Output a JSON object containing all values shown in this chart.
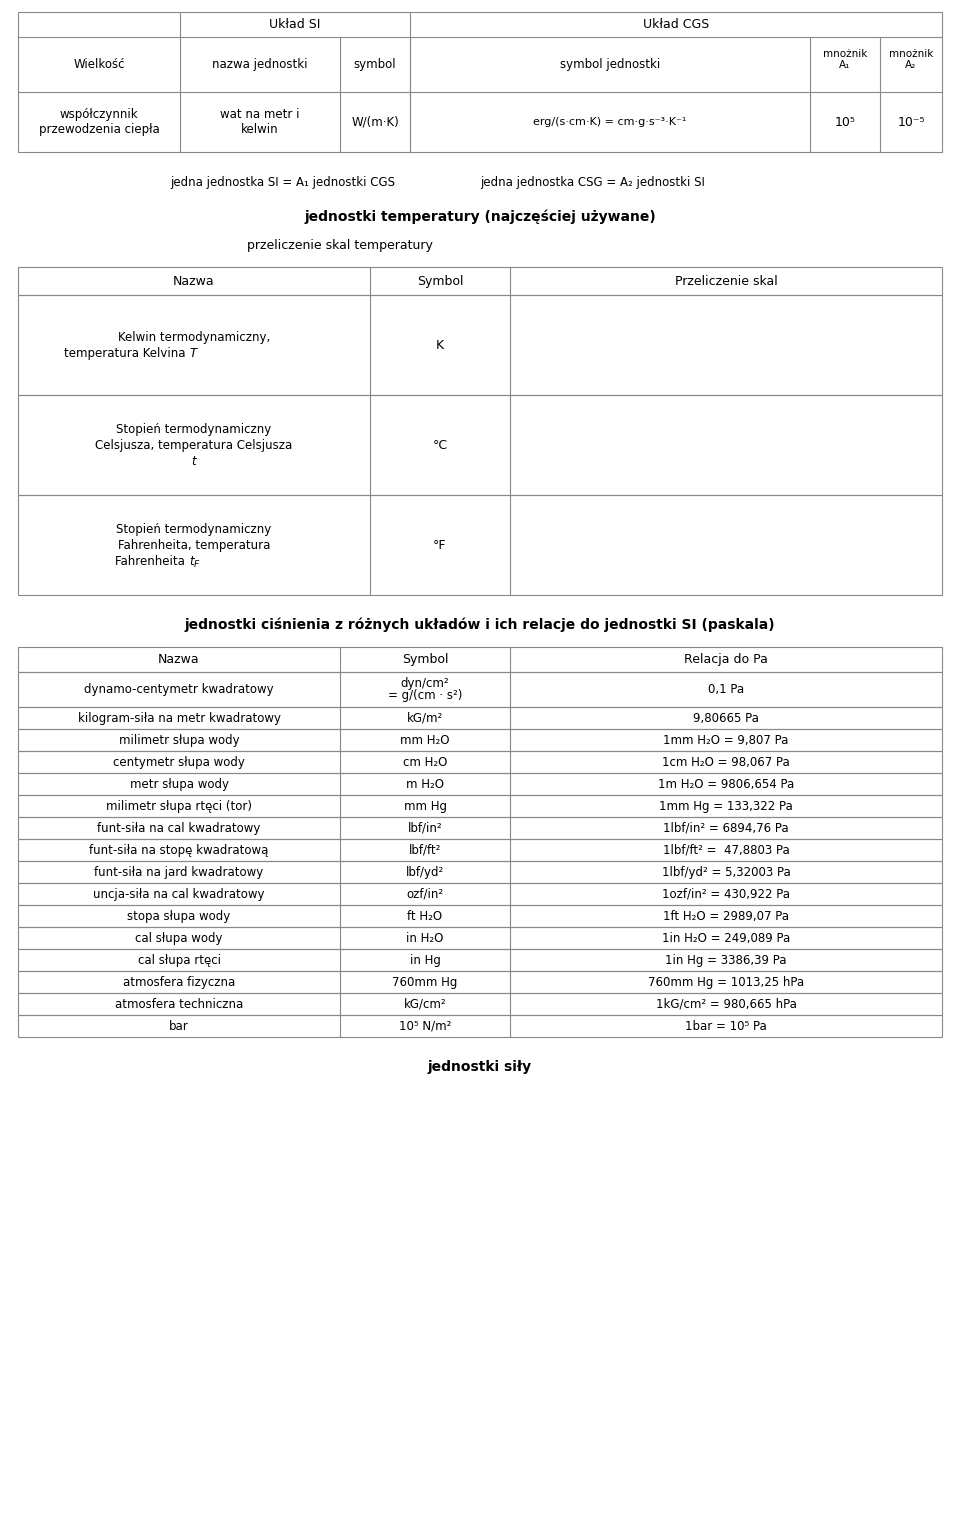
{
  "bg_color": "#ffffff",
  "border_color": "#aaaaaa",
  "text_color": "#000000",
  "title_fontsize": 10,
  "body_fontsize": 8.5,
  "small_fontsize": 7.5,
  "table1_headers": [
    [
      "",
      "Układ SI",
      "",
      "Układ CGS",
      "",
      ""
    ],
    [
      "Wielkość",
      "nazwa jednostki",
      "symbol",
      "symbol jednostki",
      "mnożnik\nA₁",
      "mnożnik\nA₂"
    ]
  ],
  "table1_row": [
    "współczynnik\nprzewodzenia ciepła",
    "wat na metr i\nkelwin",
    "W/(m·K)",
    "erg/(s·cm·K) = cm·g·s⁻³·K⁻¹",
    "10⁵",
    "10⁻⁵"
  ],
  "note1": "jedna jednostka SI = A₁ jednostki CGS",
  "note2": "jedna jednostka CSG = A₂ jednostki SI",
  "section2_title": "jednostki temperatury (najczęściej używane)",
  "section2_sub": "przeliczenie skal temperatury",
  "temp_headers": [
    "Nazwa",
    "Symbol",
    "Przeliczenie skal"
  ],
  "temp_rows": [
    [
      "Kelwin termodynamiczny,\ntemperatura Kelvina T",
      "K",
      ""
    ],
    [
      "Stopień termodynamiczny\nCelsjusza, temperatura Celsjusza\nt",
      "°C",
      ""
    ],
    [
      "Stopień termodynamiczny\nFahrenheita, temperatura\nFahrenheita tᶠ",
      "°F",
      ""
    ]
  ],
  "section3_title": "jednostki ciśnienia z różnych układów i ich relacje do jednostki SI (paskala)",
  "pressure_headers": [
    "Nazwa",
    "Symbol",
    "Relacja do Pa"
  ],
  "pressure_rows": [
    [
      "dynamo-centymetr kwadratowy",
      "dyn/cm²\n= g/(cm · s²)",
      "0,1 Pa"
    ],
    [
      "kilogram-siła na metr kwadratowy",
      "kG/m²",
      "9,80665 Pa"
    ],
    [
      "milimetr słupa wody",
      "mm H₂O",
      "1mm H₂O = 9,807 Pa"
    ],
    [
      "centymetr słupa wody",
      "cm H₂O",
      "1cm H₂O = 98,067 Pa"
    ],
    [
      "metr słupa wody",
      "m H₂O",
      "1m H₂O = 9806,654 Pa"
    ],
    [
      "milimetr słupa rtęci (tor)",
      "mm Hg",
      "1mm Hg = 133,322 Pa"
    ],
    [
      "funt-siła na cal kwadratowy",
      "lbf/in²",
      "1lbf/in² = 6894,76 Pa"
    ],
    [
      "funt-siła na stopę kwadratową",
      "lbf/ft²",
      "1lbf/ft² =  47,8803 Pa"
    ],
    [
      "funt-siła na jard kwadratowy",
      "lbf/yd²",
      "1lbf/yd² = 5,32003 Pa"
    ],
    [
      "uncja-siła na cal kwadratowy",
      "ozf/in²",
      "1ozf/in² = 430,922 Pa"
    ],
    [
      "stopa słupa wody",
      "ft H₂O",
      "1ft H₂O = 2989,07 Pa"
    ],
    [
      "cal słupa wody",
      "in H₂O",
      "1in H₂O = 249,089 Pa"
    ],
    [
      "cal słupa rtęci",
      "in Hg",
      "1in Hg = 3386,39 Pa"
    ],
    [
      "atmosfera fizyczna",
      "760mm Hg",
      "760mm Hg = 1013,25 hPa"
    ],
    [
      "atmosfera techniczna",
      "kG/cm²",
      "1kG/cm² = 980,665 hPa"
    ],
    [
      "bar",
      "10⁵ N/m²",
      "1bar = 10⁵ Pa"
    ]
  ],
  "section4_title": "jednostki siły"
}
